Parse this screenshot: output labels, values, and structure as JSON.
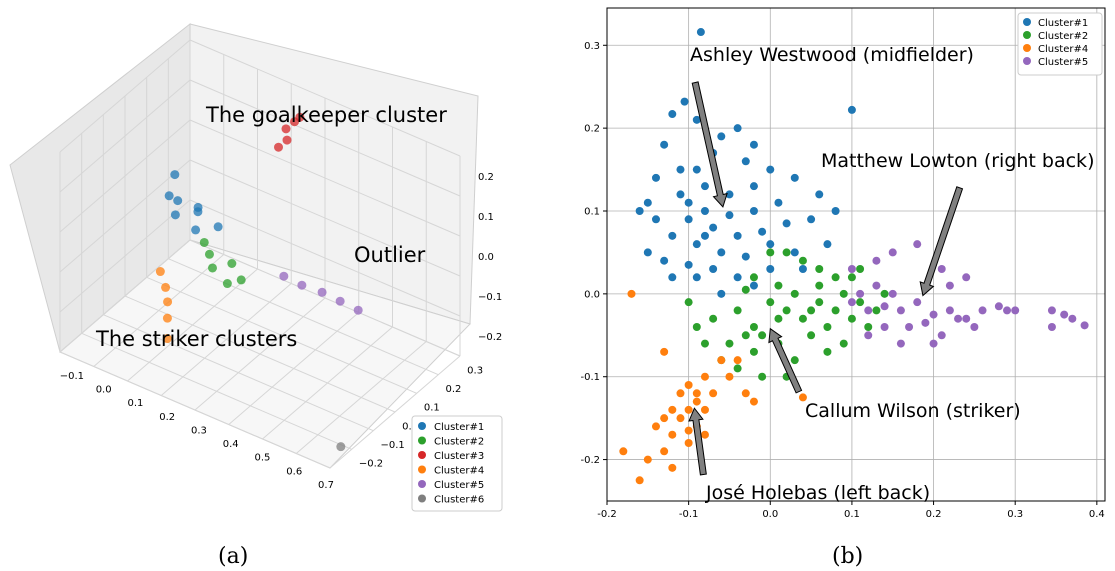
{
  "captions": {
    "a": "(a)",
    "b": "(b)"
  },
  "chart_data": [
    {
      "type": "scatter",
      "projection": "3d",
      "legend_position": "bottom-right",
      "grid": true,
      "colors": {
        "Cluster#1": "#1f77b4",
        "Cluster#2": "#2ca02c",
        "Cluster#3": "#d62728",
        "Cluster#4": "#ff7f0e",
        "Cluster#5": "#9467bd",
        "Cluster#6": "#7f7f7f"
      },
      "x_ticks": [
        "−0.1",
        "0.0",
        "0.1",
        "0.2",
        "0.3",
        "0.4",
        "0.5",
        "0.6",
        "0.7"
      ],
      "y_ticks": [
        "0.3",
        "0.2",
        "0.1",
        "0.0",
        "−0.1",
        "−0.2"
      ],
      "z_ticks": [
        "0.2",
        "0.1",
        "0.0",
        "−0.1",
        "−0.2"
      ],
      "xlim": [
        -0.15,
        0.7
      ],
      "ylim": [
        -0.25,
        0.35
      ],
      "zlim": [
        -0.25,
        0.25
      ],
      "annotations": [
        "The goalkeeper cluster",
        "Outlier",
        "The striker clusters"
      ],
      "series": [
        {
          "name": "Cluster#1",
          "points": [
            [
              0.05,
              0.0,
              0.08
            ],
            [
              0.08,
              0.05,
              0.05
            ],
            [
              0.1,
              0.02,
              0.06
            ],
            [
              0.12,
              -0.02,
              0.04
            ],
            [
              0.03,
              -0.01,
              0.09
            ],
            [
              0.15,
              0.04,
              0.03
            ],
            [
              0.0,
              0.06,
              0.1
            ],
            [
              0.07,
              -0.04,
              0.07
            ]
          ]
        },
        {
          "name": "Cluster#2",
          "points": [
            [
              0.15,
              0.0,
              -0.02
            ],
            [
              0.2,
              0.03,
              -0.04
            ],
            [
              0.18,
              -0.03,
              -0.03
            ],
            [
              0.25,
              0.0,
              -0.05
            ],
            [
              0.12,
              0.02,
              -0.01
            ],
            [
              0.22,
              -0.02,
              -0.06
            ]
          ]
        },
        {
          "name": "Cluster#3",
          "points": [
            [
              0.2,
              0.28,
              0.18
            ],
            [
              0.21,
              0.27,
              0.16
            ],
            [
              0.22,
              0.29,
              0.2
            ],
            [
              0.19,
              0.26,
              0.14
            ],
            [
              0.23,
              0.3,
              0.21
            ]
          ]
        },
        {
          "name": "Cluster#4",
          "points": [
            [
              0.1,
              -0.12,
              -0.1
            ],
            [
              0.12,
              -0.15,
              -0.12
            ],
            [
              0.08,
              -0.1,
              -0.08
            ],
            [
              0.14,
              -0.18,
              -0.15
            ],
            [
              0.05,
              -0.08,
              -0.06
            ]
          ]
        },
        {
          "name": "Cluster#5",
          "points": [
            [
              0.35,
              0.05,
              -0.03
            ],
            [
              0.45,
              0.08,
              -0.05
            ],
            [
              0.55,
              0.1,
              -0.07
            ],
            [
              0.4,
              0.06,
              -0.04
            ],
            [
              0.5,
              0.09,
              -0.06
            ]
          ]
        },
        {
          "name": "Cluster#6",
          "points": [
            [
              0.7,
              -0.2,
              -0.22
            ]
          ]
        }
      ]
    },
    {
      "type": "scatter",
      "legend_position": "top-right",
      "grid": true,
      "xlim": [
        -0.2,
        0.41
      ],
      "ylim": [
        -0.25,
        0.345
      ],
      "x_ticks": [
        -0.2,
        -0.1,
        0.0,
        0.1,
        0.2,
        0.3,
        0.4
      ],
      "y_ticks": [
        0.3,
        0.2,
        0.1,
        0.0,
        -0.1,
        -0.2
      ],
      "annotations": [
        {
          "text": "Ashley Westwood (midfielder)",
          "arrow_tail": [
            -0.092,
            0.255
          ],
          "arrow_head": [
            -0.058,
            0.105
          ]
        },
        {
          "text": "Matthew Lowton (right back)",
          "arrow_tail": [
            0.232,
            0.128
          ],
          "arrow_head": [
            0.187,
            -0.002
          ]
        },
        {
          "text": "Callum Wilson (striker)",
          "arrow_tail": [
            0.035,
            -0.118
          ],
          "arrow_head": [
            0.0,
            -0.042
          ]
        },
        {
          "text": "José Holebas (left back)",
          "arrow_tail": [
            -0.082,
            -0.218
          ],
          "arrow_head": [
            -0.093,
            -0.138
          ]
        }
      ],
      "series": [
        {
          "name": "Cluster#1",
          "color": "#1f77b4",
          "points": [
            [
              -0.085,
              0.316
            ],
            [
              0.1,
              0.222
            ],
            [
              -0.105,
              0.232
            ],
            [
              -0.12,
              0.217
            ],
            [
              -0.09,
              0.21
            ],
            [
              -0.06,
              0.19
            ],
            [
              -0.03,
              0.16
            ],
            [
              -0.14,
              0.14
            ],
            [
              -0.15,
              0.11
            ],
            [
              -0.11,
              0.15
            ],
            [
              -0.08,
              0.13
            ],
            [
              -0.05,
              0.12
            ],
            [
              -0.02,
              0.1
            ],
            [
              -0.1,
              0.09
            ],
            [
              -0.07,
              0.08
            ],
            [
              -0.04,
              0.07
            ],
            [
              -0.01,
              0.075
            ],
            [
              0.02,
              0.085
            ],
            [
              0.05,
              0.09
            ],
            [
              -0.12,
              0.07
            ],
            [
              -0.09,
              0.06
            ],
            [
              -0.06,
              0.05
            ],
            [
              -0.03,
              0.045
            ],
            [
              0.0,
              0.06
            ],
            [
              0.03,
              0.05
            ],
            [
              -0.13,
              0.04
            ],
            [
              -0.1,
              0.035
            ],
            [
              -0.07,
              0.03
            ],
            [
              -0.04,
              0.02
            ],
            [
              -0.16,
              0.1
            ],
            [
              -0.15,
              0.05
            ],
            [
              -0.11,
              0.12
            ],
            [
              -0.08,
              0.1
            ],
            [
              -0.05,
              0.095
            ],
            [
              -0.02,
              0.13
            ],
            [
              0.01,
              0.11
            ],
            [
              0.03,
              0.14
            ],
            [
              0.06,
              0.12
            ],
            [
              0.08,
              0.1
            ],
            [
              0.07,
              0.06
            ],
            [
              0.04,
              0.03
            ],
            [
              0.0,
              0.03
            ],
            [
              -0.02,
              0.01
            ],
            [
              -0.06,
              0.0
            ],
            [
              -0.09,
              0.02
            ],
            [
              -0.12,
              0.02
            ],
            [
              -0.14,
              0.09
            ],
            [
              -0.13,
              0.18
            ],
            [
              -0.07,
              0.17
            ],
            [
              -0.04,
              0.2
            ],
            [
              -0.02,
              0.18
            ],
            [
              0.0,
              0.15
            ],
            [
              -0.09,
              0.15
            ],
            [
              -0.1,
              0.11
            ],
            [
              -0.08,
              0.07
            ]
          ]
        },
        {
          "name": "Cluster#2",
          "color": "#2ca02c",
          "points": [
            [
              0.0,
              -0.01
            ],
            [
              0.02,
              -0.02
            ],
            [
              0.04,
              -0.03
            ],
            [
              -0.02,
              -0.04
            ],
            [
              -0.04,
              -0.02
            ],
            [
              0.06,
              -0.01
            ],
            [
              0.08,
              -0.02
            ],
            [
              0.1,
              -0.03
            ],
            [
              0.01,
              0.01
            ],
            [
              0.03,
              0.0
            ],
            [
              -0.03,
              0.005
            ],
            [
              -0.01,
              -0.05
            ],
            [
              0.05,
              -0.05
            ],
            [
              0.07,
              -0.04
            ],
            [
              0.09,
              0.0
            ],
            [
              -0.05,
              -0.06
            ],
            [
              -0.02,
              -0.07
            ],
            [
              0.01,
              -0.06
            ],
            [
              0.03,
              -0.08
            ],
            [
              -0.04,
              -0.09
            ],
            [
              -0.01,
              -0.1
            ],
            [
              0.02,
              -0.1
            ],
            [
              0.11,
              -0.01
            ],
            [
              0.13,
              -0.02
            ],
            [
              0.12,
              -0.04
            ],
            [
              0.08,
              0.02
            ],
            [
              0.06,
              0.03
            ],
            [
              0.1,
              0.02
            ],
            [
              -0.07,
              -0.03
            ],
            [
              -0.09,
              -0.04
            ],
            [
              -0.1,
              -0.01
            ],
            [
              0.04,
              0.04
            ],
            [
              0.02,
              0.05
            ],
            [
              0.0,
              0.05
            ],
            [
              -0.03,
              -0.05
            ],
            [
              0.05,
              -0.02
            ],
            [
              0.01,
              -0.03
            ],
            [
              -0.06,
              -0.08
            ],
            [
              0.07,
              -0.07
            ],
            [
              0.09,
              -0.06
            ],
            [
              0.14,
              0.0
            ],
            [
              0.11,
              0.03
            ],
            [
              -0.02,
              0.02
            ],
            [
              0.06,
              0.01
            ],
            [
              -0.08,
              -0.06
            ]
          ]
        },
        {
          "name": "Cluster#4",
          "color": "#ff7f0e",
          "points": [
            [
              -0.17,
              0.0
            ],
            [
              -0.13,
              -0.07
            ],
            [
              -0.1,
              -0.11
            ],
            [
              -0.09,
              -0.13
            ],
            [
              -0.11,
              -0.15
            ],
            [
              -0.12,
              -0.17
            ],
            [
              -0.1,
              -0.18
            ],
            [
              -0.13,
              -0.19
            ],
            [
              -0.15,
              -0.2
            ],
            [
              -0.16,
              -0.225
            ],
            [
              -0.12,
              -0.21
            ],
            [
              -0.08,
              -0.14
            ],
            [
              -0.07,
              -0.12
            ],
            [
              -0.05,
              -0.1
            ],
            [
              -0.03,
              -0.12
            ],
            [
              -0.02,
              -0.13
            ],
            [
              0.04,
              -0.125
            ],
            [
              -0.06,
              -0.08
            ],
            [
              -0.04,
              -0.08
            ],
            [
              -0.08,
              -0.1
            ],
            [
              -0.14,
              -0.16
            ],
            [
              -0.09,
              -0.16
            ],
            [
              -0.1,
              -0.14
            ],
            [
              -0.11,
              -0.12
            ],
            [
              -0.09,
              -0.12
            ],
            [
              -0.12,
              -0.14
            ],
            [
              -0.13,
              -0.15
            ],
            [
              -0.1,
              -0.165
            ],
            [
              -0.18,
              -0.19
            ],
            [
              -0.08,
              -0.17
            ]
          ]
        },
        {
          "name": "Cluster#5",
          "color": "#9467bd",
          "points": [
            [
              0.1,
              -0.01
            ],
            [
              0.12,
              -0.02
            ],
            [
              0.14,
              -0.015
            ],
            [
              0.16,
              -0.02
            ],
            [
              0.18,
              -0.01
            ],
            [
              0.2,
              -0.025
            ],
            [
              0.22,
              -0.02
            ],
            [
              0.24,
              -0.03
            ],
            [
              0.26,
              -0.02
            ],
            [
              0.28,
              -0.015
            ],
            [
              0.29,
              -0.02
            ],
            [
              0.3,
              -0.02
            ],
            [
              0.345,
              -0.02
            ],
            [
              0.345,
              -0.04
            ],
            [
              0.36,
              -0.025
            ],
            [
              0.37,
              -0.03
            ],
            [
              0.385,
              -0.038
            ],
            [
              0.11,
              0.0
            ],
            [
              0.13,
              0.01
            ],
            [
              0.15,
              0.0
            ],
            [
              0.17,
              -0.04
            ],
            [
              0.19,
              -0.035
            ],
            [
              0.21,
              -0.05
            ],
            [
              0.23,
              -0.03
            ],
            [
              0.25,
              -0.04
            ],
            [
              0.13,
              0.04
            ],
            [
              0.15,
              0.05
            ],
            [
              0.18,
              0.06
            ],
            [
              0.21,
              0.03
            ],
            [
              0.24,
              0.02
            ],
            [
              0.16,
              -0.06
            ],
            [
              0.2,
              -0.06
            ],
            [
              0.12,
              -0.05
            ],
            [
              0.14,
              -0.04
            ],
            [
              0.1,
              0.03
            ],
            [
              0.22,
              0.01
            ]
          ]
        }
      ]
    }
  ]
}
